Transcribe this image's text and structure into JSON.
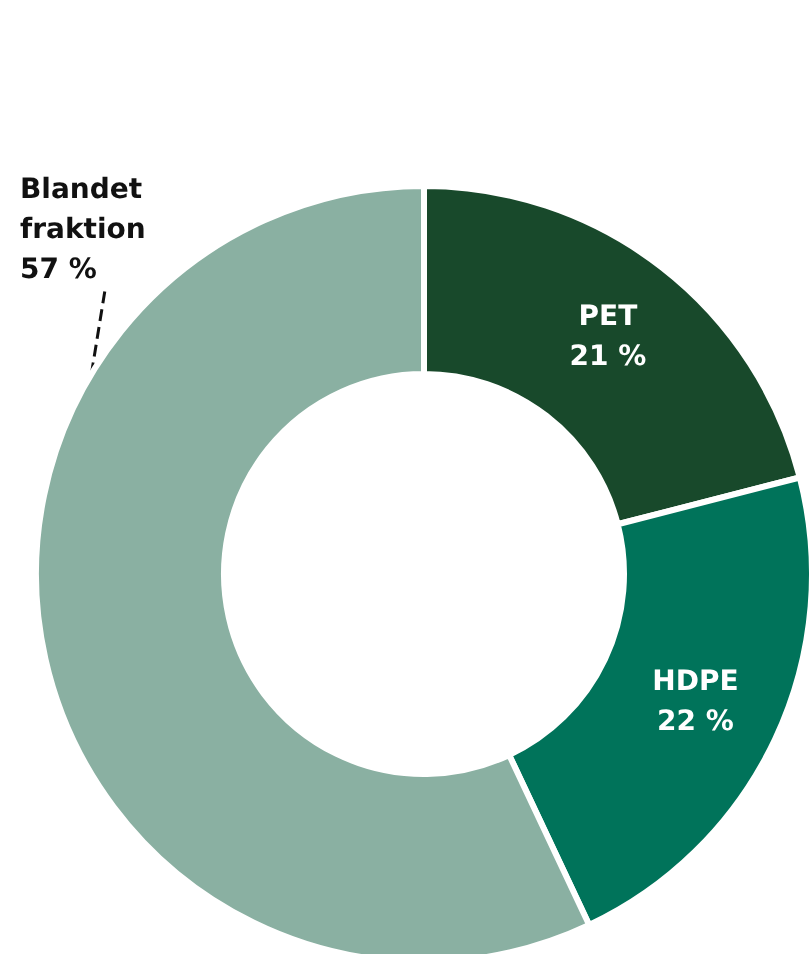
{
  "chart_data": {
    "type": "donut",
    "categories": [
      "PET",
      "HDPE",
      "Blandet fraktion"
    ],
    "values": [
      21,
      22,
      57
    ],
    "value_labels": [
      "21 %",
      "22 %",
      "57 %"
    ],
    "colors": [
      "#18492b",
      "#00735a",
      "#8ab0a2"
    ],
    "legend": false
  }
}
